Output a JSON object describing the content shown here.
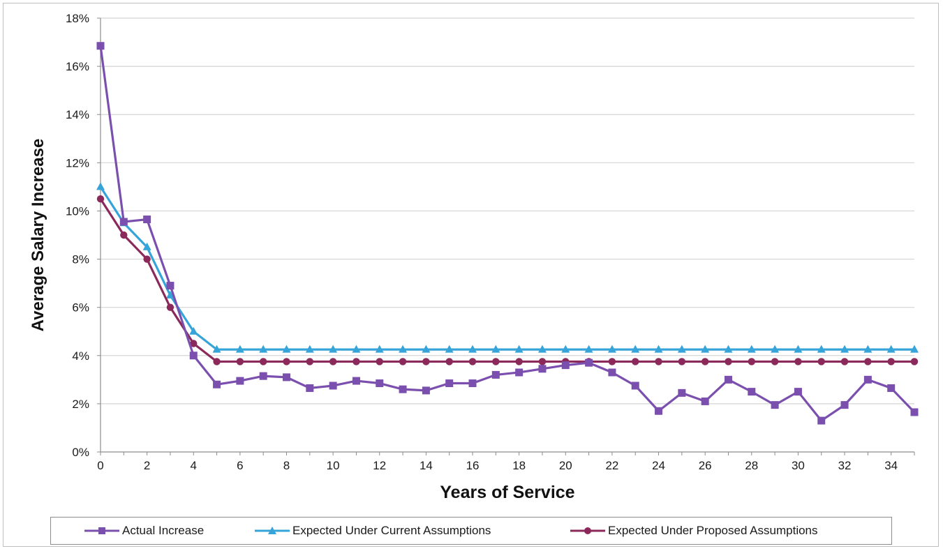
{
  "chart_data": {
    "type": "line",
    "title": "",
    "xlabel": "Years of Service",
    "ylabel": "Average Salary Increase",
    "xlim": [
      0,
      35
    ],
    "ylim": [
      0,
      18
    ],
    "x_ticks": [
      0,
      2,
      4,
      6,
      8,
      10,
      12,
      14,
      16,
      18,
      20,
      22,
      24,
      26,
      28,
      30,
      32,
      34
    ],
    "y_ticks": [
      "0%",
      "2%",
      "4%",
      "6%",
      "8%",
      "10%",
      "12%",
      "14%",
      "16%",
      "18%"
    ],
    "grid": true,
    "legend_position": "bottom",
    "x": [
      0,
      1,
      2,
      3,
      4,
      5,
      6,
      7,
      8,
      9,
      10,
      11,
      12,
      13,
      14,
      15,
      16,
      17,
      18,
      19,
      20,
      21,
      22,
      23,
      24,
      25,
      26,
      27,
      28,
      29,
      30,
      31,
      32,
      33,
      34,
      35
    ],
    "series": [
      {
        "name": "Actual Increase",
        "color": "#7a4fae",
        "marker": "square",
        "values": [
          16.85,
          9.55,
          9.65,
          6.9,
          4.0,
          2.8,
          2.95,
          3.15,
          3.1,
          2.65,
          2.75,
          2.95,
          2.85,
          2.6,
          2.55,
          2.85,
          2.85,
          3.2,
          3.3,
          3.45,
          3.6,
          3.7,
          3.3,
          2.75,
          1.7,
          2.45,
          2.1,
          3.0,
          2.5,
          1.95,
          2.5,
          1.3,
          1.95,
          3.0,
          2.65,
          1.65
        ]
      },
      {
        "name": "Expected Under Current Assumptions",
        "color": "#36a4d8",
        "marker": "triangle",
        "values": [
          11.0,
          9.5,
          8.5,
          6.5,
          5.0,
          4.25,
          4.25,
          4.25,
          4.25,
          4.25,
          4.25,
          4.25,
          4.25,
          4.25,
          4.25,
          4.25,
          4.25,
          4.25,
          4.25,
          4.25,
          4.25,
          4.25,
          4.25,
          4.25,
          4.25,
          4.25,
          4.25,
          4.25,
          4.25,
          4.25,
          4.25,
          4.25,
          4.25,
          4.25,
          4.25,
          4.25
        ]
      },
      {
        "name": "Expected Under Proposed Assumptions",
        "color": "#8b2a5a",
        "marker": "circle",
        "values": [
          10.5,
          9.0,
          8.0,
          6.0,
          4.5,
          3.75,
          3.75,
          3.75,
          3.75,
          3.75,
          3.75,
          3.75,
          3.75,
          3.75,
          3.75,
          3.75,
          3.75,
          3.75,
          3.75,
          3.75,
          3.75,
          3.75,
          3.75,
          3.75,
          3.75,
          3.75,
          3.75,
          3.75,
          3.75,
          3.75,
          3.75,
          3.75,
          3.75,
          3.75,
          3.75,
          3.75
        ]
      }
    ]
  }
}
